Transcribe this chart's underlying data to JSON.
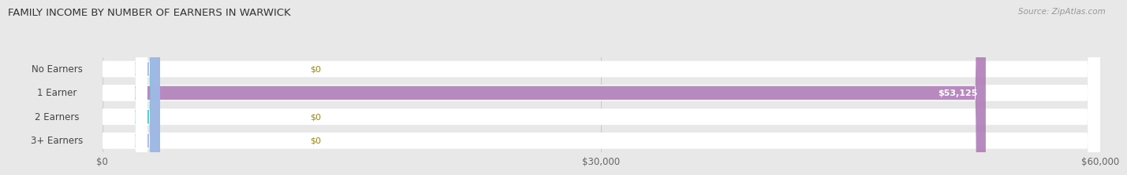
{
  "title": "FAMILY INCOME BY NUMBER OF EARNERS IN WARWICK",
  "source": "Source: ZipAtlas.com",
  "categories": [
    "No Earners",
    "1 Earner",
    "2 Earners",
    "3+ Earners"
  ],
  "values": [
    0,
    53125,
    0,
    0
  ],
  "max_value": 60000,
  "bar_colors": [
    "#a8b8e8",
    "#b07db8",
    "#4ec9c0",
    "#a8b8e8"
  ],
  "value_labels": [
    "$0",
    "$53,125",
    "$0",
    "$0"
  ],
  "x_ticks": [
    0,
    30000,
    60000
  ],
  "x_tick_labels": [
    "$0",
    "$30,000",
    "$60,000"
  ],
  "fig_bg_color": "#e8e8e8",
  "row_bg_color": "#f0f0f0",
  "title_fontsize": 9.5,
  "label_fontsize": 8.5,
  "value_fontsize": 8.0,
  "source_fontsize": 7.5
}
